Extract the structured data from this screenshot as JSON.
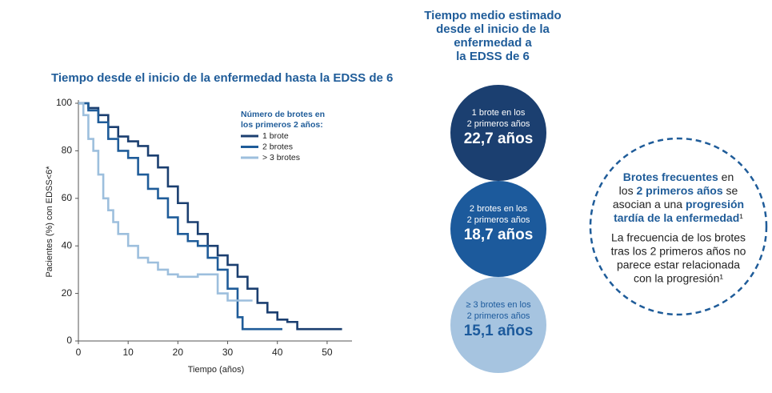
{
  "chart_data": {
    "type": "step",
    "title": "Tiempo desde el inicio de la enfermedad hasta la EDSS de 6",
    "x_label": "Tiempo (años)",
    "y_label": "Pacientes (%) con EDSS<6*",
    "legend_title": [
      "Número de brotes en",
      "los primeros 2 años:"
    ],
    "xlim": [
      0,
      55
    ],
    "ylim": [
      0,
      100
    ],
    "xticks": [
      0,
      10,
      20,
      30,
      40,
      50
    ],
    "yticks": [
      0,
      20,
      40,
      60,
      80,
      100
    ],
    "series": [
      {
        "name": "1 brote",
        "color": "#1b3f70",
        "x": [
          0,
          2,
          4,
          6,
          8,
          10,
          12,
          14,
          16,
          18,
          20,
          22,
          24,
          26,
          28,
          30,
          32,
          34,
          36,
          38,
          40,
          42,
          44,
          53
        ],
        "values": [
          100,
          98,
          95,
          90,
          86,
          84,
          82,
          78,
          73,
          65,
          58,
          50,
          45,
          40,
          36,
          32,
          27,
          22,
          16,
          12,
          9,
          8,
          5,
          5
        ]
      },
      {
        "name": "2 brotes",
        "color": "#1f5c99",
        "x": [
          0,
          2,
          4,
          6,
          8,
          10,
          12,
          14,
          16,
          18,
          20,
          22,
          24,
          26,
          28,
          30,
          32,
          33,
          41
        ],
        "values": [
          100,
          97,
          92,
          85,
          80,
          77,
          70,
          64,
          60,
          52,
          45,
          42,
          40,
          35,
          30,
          22,
          10,
          5,
          5
        ]
      },
      {
        "name": "> 3 brotes",
        "color": "#9dbfdd",
        "x": [
          0,
          1,
          2,
          3,
          4,
          5,
          6,
          7,
          8,
          10,
          12,
          14,
          16,
          18,
          20,
          24,
          28,
          30,
          35
        ],
        "values": [
          100,
          95,
          85,
          80,
          70,
          60,
          55,
          50,
          45,
          40,
          35,
          33,
          30,
          28,
          27,
          28,
          20,
          17,
          17
        ]
      }
    ]
  },
  "summary": {
    "header": [
      "Tiempo medio estimado",
      "desde el inicio de la",
      "enfermedad a",
      "la EDSS de 6"
    ],
    "circles": [
      {
        "label": [
          "1 brote en los",
          "2 primeros años"
        ],
        "value": "22,7 años",
        "color": "#1b3f70",
        "text_color": "#ffffff"
      },
      {
        "label": [
          "2 brotes en los",
          "2 primeros años"
        ],
        "value": "18,7 años",
        "color": "#1c5a9c",
        "text_color": "#ffffff"
      },
      {
        "label": [
          "≥ 3 brotes en los",
          "2 primeros años"
        ],
        "value": "15,1 años",
        "color": "#a6c4e0",
        "text_color": "#1c5a9c"
      }
    ]
  },
  "callout": {
    "lines": [
      [
        {
          "text": "Brotes frecuentes",
          "bold": true
        },
        {
          "text": " en",
          "bold": false
        }
      ],
      [
        {
          "text": "los ",
          "bold": false
        },
        {
          "text": "2 primeros años",
          "bold": true
        },
        {
          "text": " se",
          "bold": false
        }
      ],
      [
        {
          "text": "asocian a una ",
          "bold": false
        },
        {
          "text": "progresión",
          "bold": true
        }
      ],
      [
        {
          "text": "tardía de la enfermedad",
          "bold": true
        },
        {
          "text": "¹",
          "bold": false
        }
      ]
    ],
    "note": [
      "La frecuencia de los brotes",
      "tras los 2 primeros años no",
      "parece estar relacionada",
      "con la progresión¹"
    ]
  }
}
